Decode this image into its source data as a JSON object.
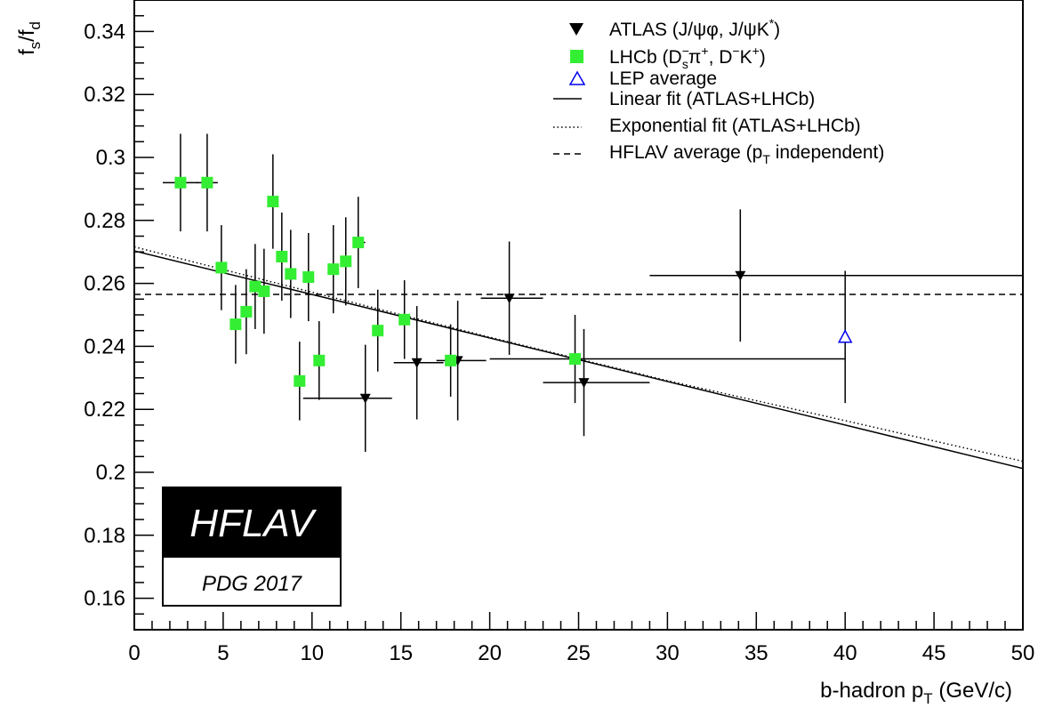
{
  "chart_data": {
    "type": "scatter",
    "title": "",
    "xlabel": "b-hadron p_T (GeV/c)",
    "ylabel": "f_s/f_d",
    "xlim": [
      0,
      50
    ],
    "ylim": [
      0.15,
      0.35
    ],
    "x_ticks": [
      0,
      5,
      10,
      15,
      20,
      25,
      30,
      35,
      40,
      45,
      50
    ],
    "y_ticks": [
      0.16,
      0.18,
      0.2,
      0.22,
      0.24,
      0.26,
      0.28,
      0.3,
      0.32,
      0.34
    ],
    "grid": false,
    "legend_position": "top-right",
    "series": [
      {
        "name": "ATLAS (J/ψφ, J/ψK*)",
        "marker": "triangle-down-filled",
        "color": "#000000",
        "points": [
          {
            "x": 13.0,
            "y": 0.2235,
            "xerr": [
              3.5,
              1.5
            ],
            "yerr": 0.017
          },
          {
            "x": 15.9,
            "y": 0.2348,
            "xerr": [
              1.3,
              1.5
            ],
            "yerr": 0.018
          },
          {
            "x": 18.2,
            "y": 0.2355,
            "xerr": [
              1.2,
              1.6
            ],
            "yerr": 0.019
          },
          {
            "x": 21.1,
            "y": 0.2553,
            "xerr": [
              1.6,
              1.9
            ],
            "yerr": 0.018
          },
          {
            "x": 25.3,
            "y": 0.2285,
            "xerr": [
              2.3,
              3.7
            ],
            "yerr": 0.017
          },
          {
            "x": 34.1,
            "y": 0.2625,
            "xerr": [
              5.1,
              15.9
            ],
            "yerr": 0.021
          }
        ]
      },
      {
        "name": "LHCb (D_s⁻π⁺, D⁻K⁺)",
        "marker": "square-filled",
        "color": "#33ee33",
        "points": [
          {
            "x": 2.6,
            "y": 0.292,
            "xerr": [
              1.0,
              1.0
            ],
            "yerr": 0.0155
          },
          {
            "x": 4.1,
            "y": 0.292,
            "xerr": [
              0.6,
              0.6
            ],
            "yerr": 0.0155
          },
          {
            "x": 4.9,
            "y": 0.265,
            "xerr": [
              0.0,
              0.0
            ],
            "yerr": 0.0135
          },
          {
            "x": 5.7,
            "y": 0.247,
            "xerr": [
              0.0,
              0.0
            ],
            "yerr": 0.0125
          },
          {
            "x": 6.3,
            "y": 0.251,
            "xerr": [
              0.0,
              0.0
            ],
            "yerr": 0.0135
          },
          {
            "x": 6.8,
            "y": 0.259,
            "xerr": [
              0.0,
              0.0
            ],
            "yerr": 0.0135
          },
          {
            "x": 7.3,
            "y": 0.2575,
            "xerr": [
              0.0,
              0.0
            ],
            "yerr": 0.0135
          },
          {
            "x": 7.8,
            "y": 0.286,
            "xerr": [
              0.0,
              0.0
            ],
            "yerr": 0.015
          },
          {
            "x": 8.3,
            "y": 0.2685,
            "xerr": [
              0.0,
              0.0
            ],
            "yerr": 0.014
          },
          {
            "x": 8.8,
            "y": 0.263,
            "xerr": [
              0.0,
              0.0
            ],
            "yerr": 0.014
          },
          {
            "x": 9.3,
            "y": 0.229,
            "xerr": [
              0.0,
              0.0
            ],
            "yerr": 0.0125
          },
          {
            "x": 9.8,
            "y": 0.262,
            "xerr": [
              0.0,
              0.0
            ],
            "yerr": 0.014
          },
          {
            "x": 10.4,
            "y": 0.2355,
            "xerr": [
              0.0,
              0.0
            ],
            "yerr": 0.0125
          },
          {
            "x": 11.2,
            "y": 0.2645,
            "xerr": [
              0.0,
              0.0
            ],
            "yerr": 0.014
          },
          {
            "x": 11.9,
            "y": 0.267,
            "xerr": [
              0.0,
              0.0
            ],
            "yerr": 0.014
          },
          {
            "x": 12.6,
            "y": 0.273,
            "xerr": [
              0.0,
              0.4
            ],
            "yerr": 0.0145
          },
          {
            "x": 13.7,
            "y": 0.245,
            "xerr": [
              0.0,
              0.0
            ],
            "yerr": 0.013
          },
          {
            "x": 15.2,
            "y": 0.2485,
            "xerr": [
              0.0,
              0.0
            ],
            "yerr": 0.0125
          },
          {
            "x": 17.8,
            "y": 0.2355,
            "xerr": [
              0.0,
              0.0
            ],
            "yerr": 0.0115
          },
          {
            "x": 24.8,
            "y": 0.236,
            "xerr": [
              4.8,
              15.2
            ],
            "yerr": 0.014
          }
        ]
      },
      {
        "name": "LEP average",
        "marker": "triangle-up-open",
        "color": "#0000ee",
        "points": [
          {
            "x": 40.0,
            "y": 0.243,
            "xerr": [
              0,
              0
            ],
            "yerr": 0.021
          }
        ]
      }
    ],
    "lines": [
      {
        "name": "Linear fit (ATLAS+LHCb)",
        "style": "solid",
        "x": [
          0,
          50
        ],
        "y": [
          0.2703,
          0.2012
        ]
      },
      {
        "name": "Exponential fit (ATLAS+LHCb)",
        "style": "dotted",
        "x": [
          0,
          10,
          20,
          30,
          40,
          50
        ],
        "y": [
          0.2716,
          0.2572,
          0.2429,
          0.2291,
          0.2164,
          0.2035
        ]
      },
      {
        "name": "HFLAV average (p_T independent)",
        "style": "dashed",
        "x": [
          0,
          50
        ],
        "y": [
          0.2565,
          0.2565
        ]
      }
    ]
  },
  "axes": {
    "x_title_main": "b-hadron p",
    "x_title_sub": "T",
    "x_title_rest": " (GeV/c)",
    "y_title_f1": "f",
    "y_title_s": "s",
    "y_title_slash": "/f",
    "y_title_d": "d"
  },
  "legend": {
    "atlas_label": "ATLAS (J/ψφ, J/ψK",
    "atlas_sup": "*",
    "atlas_close": ")",
    "lhcb_label": "LHCb (D",
    "lhcb_sup1": "−",
    "lhcb_sub1": "s",
    "lhcb_pi": "π",
    "lhcb_sup2": "+",
    "lhcb_mid": ", D",
    "lhcb_sup3": "−",
    "lhcb_k": "K",
    "lhcb_sup4": "+",
    "lhcb_close": ")",
    "lep_label": "LEP average",
    "linear_label": "Linear fit (ATLAS+LHCb)",
    "exp_label": "Exponential fit (ATLAS+LHCb)",
    "hflav_label": "HFLAV average (p",
    "hflav_sub": "T",
    "hflav_close": " independent)"
  },
  "badge": {
    "title": "HFLAV",
    "subtitle": "PDG 2017"
  },
  "colors": {
    "atlas": "#000000",
    "lhcb": "#33ee33",
    "lep": "#0000ee",
    "axis": "#000000",
    "badge_bg": "#000000"
  }
}
